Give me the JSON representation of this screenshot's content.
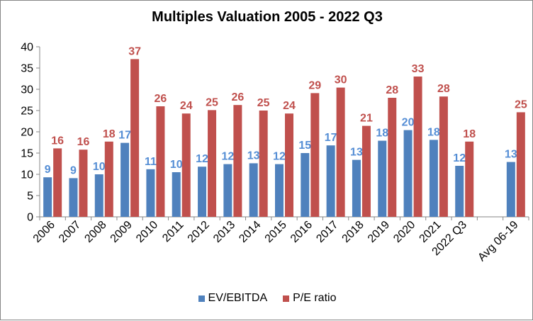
{
  "chart_data": {
    "type": "bar",
    "title": "Multiples Valuation 2005 - 2022 Q3",
    "categories": [
      "2006",
      "2007",
      "2008",
      "2009",
      "2010",
      "2011",
      "2012",
      "2013",
      "2014",
      "2015",
      "2016",
      "2017",
      "2018",
      "2019",
      "2020",
      "2021",
      "2022 Q3",
      "",
      "Avg 06-19"
    ],
    "series": [
      {
        "name": "EV/EBITDA",
        "color": "#4F81BD",
        "label_color": "#558ED5",
        "values": [
          9.3,
          9.1,
          10.0,
          17.4,
          11.2,
          10.5,
          11.8,
          12.4,
          12.6,
          12.4,
          15.0,
          16.8,
          13.4,
          17.9,
          20.4,
          18.1,
          12.0,
          null,
          12.9
        ],
        "labels": [
          "9",
          "9",
          "10",
          "17",
          "11",
          "10",
          "12",
          "12",
          "13",
          "12",
          "15",
          "17",
          "13",
          "18",
          "20",
          "18",
          "12",
          "",
          "13"
        ]
      },
      {
        "name": "P/E ratio",
        "color": "#C0504D",
        "label_color": "#C0504D",
        "values": [
          16.1,
          15.8,
          17.7,
          37.1,
          26.0,
          24.3,
          25.1,
          26.3,
          25.0,
          24.3,
          29.1,
          30.4,
          21.4,
          28.0,
          33.0,
          28.3,
          17.7,
          null,
          24.6
        ],
        "labels": [
          "16",
          "16",
          "18",
          "37",
          "26",
          "24",
          "25",
          "26",
          "25",
          "24",
          "29",
          "30",
          "21",
          "28",
          "33",
          "28",
          "18",
          "",
          "25"
        ]
      }
    ],
    "ylim": [
      0,
      40
    ],
    "yticks": [
      "0",
      "5",
      "10",
      "15",
      "20",
      "25",
      "30",
      "35",
      "40"
    ],
    "xlabel": "",
    "ylabel": "",
    "grid": false,
    "legend_position": "bottom"
  }
}
